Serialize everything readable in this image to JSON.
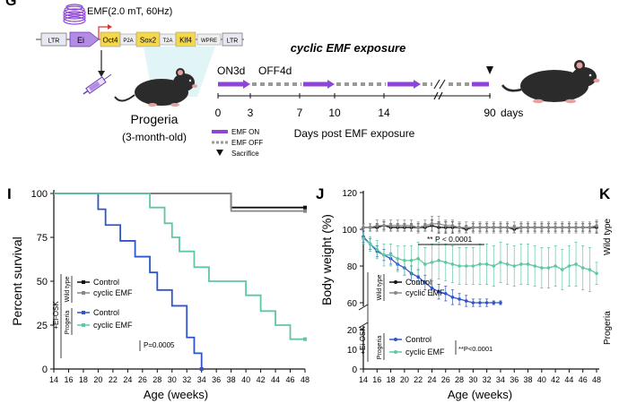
{
  "header": {
    "panel_letter": "G",
    "emf_spec": "EMF(2.0 mT, 60Hz)",
    "construct_parts": [
      "LTR",
      "Ei",
      "Oct4",
      "P2A",
      "Sox2",
      "T2A",
      "Klf4",
      "WPRE",
      "LTR"
    ],
    "mouse_label": "Progeria",
    "mouse_sub": "(3-month-old)",
    "schedule_title": "cyclic EMF exposure",
    "on_label": "ON3d",
    "off_label": "OFF4d",
    "timeline_ticks": [
      "0",
      "3",
      "7",
      "10",
      "14",
      "90"
    ],
    "timeline_unit": "days",
    "timeline_xlabel": "Days post EMF exposure",
    "legend": {
      "on": "EMF ON",
      "off": "EMF OFF",
      "sacrifice": "Sacrifice"
    },
    "colors": {
      "emf_on": "#8e44d8",
      "emf_off": "#9a9a9a",
      "mouse": "#2b2b2b"
    }
  },
  "panel_I": {
    "letter": "I"
  },
  "panel_J": {
    "letter": "J"
  },
  "panel_K": {
    "letter": "K",
    "side_label_1": "Wild type",
    "side_label_2": "Progeria"
  },
  "chart_data": [
    {
      "type": "line",
      "style": "step",
      "xlabel": "Age (weeks)",
      "ylabel": "Percent survival",
      "xlim": [
        14,
        48
      ],
      "ylim": [
        0,
        100
      ],
      "x_ticks": [
        "14",
        "16",
        "18",
        "20",
        "22",
        "24",
        "26",
        "28",
        "30",
        "32",
        "34",
        "36",
        "38",
        "40",
        "42",
        "44",
        "46",
        "48"
      ],
      "y_ticks": [
        "0",
        "25",
        "50",
        "75",
        "100"
      ],
      "legend_groups": [
        {
          "group": "Wild type",
          "outer": "+Ei-OSK",
          "entries": [
            "Control",
            "cyclic EMF"
          ]
        },
        {
          "group": "Progeria",
          "outer": "+Ei-OSK",
          "entries": [
            "Control",
            "cyclic EMF"
          ]
        }
      ],
      "annotation": "P=0.0005",
      "series": [
        {
          "name": "Control",
          "group": "Wild type",
          "color": "#111111",
          "x": [
            14,
            38,
            48
          ],
          "y": [
            100,
            92,
            92
          ]
        },
        {
          "name": "cyclic EMF",
          "group": "Wild type",
          "color": "#888888",
          "x": [
            14,
            38,
            48
          ],
          "y": [
            100,
            90,
            90
          ]
        },
        {
          "name": "Control",
          "group": "Progeria",
          "color": "#2f55c7",
          "x": [
            14,
            19,
            20,
            21,
            23,
            25,
            27,
            28,
            30,
            32,
            33,
            34
          ],
          "y": [
            100,
            100,
            91,
            82,
            73,
            64,
            55,
            45,
            36,
            18,
            9,
            0
          ]
        },
        {
          "name": "cyclic EMF",
          "group": "Progeria",
          "color": "#5ec8a0",
          "x": [
            14,
            25,
            27,
            29,
            30,
            31,
            33,
            35,
            40,
            42,
            44,
            46,
            48
          ],
          "y": [
            100,
            100,
            92,
            83,
            75,
            67,
            58,
            50,
            42,
            33,
            25,
            17,
            17
          ]
        }
      ]
    },
    {
      "type": "line",
      "xlabel": "Age (weeks)",
      "ylabel": "Body weight (%)",
      "xlim": [
        14,
        48
      ],
      "ylim": [
        0,
        120
      ],
      "y_break": [
        20,
        60
      ],
      "x_ticks": [
        "14",
        "16",
        "18",
        "20",
        "22",
        "24",
        "26",
        "28",
        "30",
        "32",
        "34",
        "36",
        "38",
        "40",
        "42",
        "44",
        "46",
        "48"
      ],
      "y_ticks_upper": [
        "60",
        "80",
        "100",
        "120"
      ],
      "y_ticks_lower": [
        "0",
        "10",
        "20"
      ],
      "legend_groups": [
        {
          "group": "Wild type",
          "outer": "+Ei-OSK",
          "entries": [
            "Control",
            "cyclic EMF"
          ]
        },
        {
          "group": "Progeria",
          "outer": "+Ei-OSK",
          "entries": [
            "Control",
            "cyclic EMF"
          ]
        }
      ],
      "annotation_top": "** P < 0.0001",
      "annotation_bottom": "**P<0.0001",
      "series": [
        {
          "name": "Control",
          "group": "Wild type",
          "color": "#111111",
          "x": [
            14,
            15,
            16,
            17,
            18,
            19,
            20,
            21,
            22,
            23,
            24,
            25,
            26,
            27,
            28,
            29,
            30,
            31,
            32,
            33,
            34,
            35,
            36,
            37,
            38,
            39,
            40,
            41,
            42,
            43,
            44,
            45,
            46,
            47,
            48
          ],
          "y": [
            101,
            101,
            101,
            102,
            101,
            101,
            101,
            101,
            101,
            101,
            102,
            101,
            101,
            101,
            101,
            100,
            101,
            101,
            101,
            101,
            101,
            101,
            100,
            101,
            101,
            101,
            101,
            101,
            101,
            101,
            101,
            101,
            101,
            101,
            101
          ],
          "err": [
            2,
            2,
            2,
            2,
            2,
            2,
            2,
            2,
            2,
            2,
            3,
            3,
            3,
            3,
            2,
            2,
            2,
            2,
            2,
            2,
            2,
            2,
            2,
            2,
            2,
            2,
            2,
            2,
            2,
            2,
            2,
            2,
            2,
            2,
            3
          ]
        },
        {
          "name": "cyclic EMF",
          "group": "Wild type",
          "color": "#888888",
          "x": [
            14,
            15,
            16,
            17,
            18,
            19,
            20,
            21,
            22,
            23,
            24,
            25,
            26,
            27,
            28,
            29,
            30,
            31,
            32,
            33,
            34,
            35,
            36,
            37,
            38,
            39,
            40,
            41,
            42,
            43,
            44,
            45,
            46,
            47,
            48
          ],
          "y": [
            101,
            101,
            102,
            102,
            102,
            102,
            102,
            102,
            101,
            102,
            103,
            103,
            102,
            102,
            101,
            101,
            101,
            101,
            101,
            101,
            101,
            101,
            101,
            101,
            101,
            101,
            101,
            101,
            101,
            101,
            101,
            101,
            101,
            101,
            102
          ],
          "err": [
            2,
            2,
            3,
            3,
            3,
            3,
            3,
            3,
            3,
            3,
            4,
            4,
            3,
            3,
            3,
            3,
            3,
            3,
            3,
            3,
            3,
            3,
            3,
            3,
            3,
            3,
            3,
            3,
            3,
            3,
            3,
            3,
            3,
            3,
            3
          ]
        },
        {
          "name": "Control",
          "group": "Progeria",
          "color": "#2f55c7",
          "x": [
            14,
            15,
            16,
            17,
            18,
            19,
            20,
            21,
            22,
            23,
            24,
            25,
            26,
            27,
            28,
            29,
            30,
            31,
            32,
            33,
            34
          ],
          "y": [
            96,
            92,
            88,
            86,
            84,
            81,
            79,
            76,
            74,
            71,
            68,
            66,
            65,
            63,
            62,
            61,
            60,
            60,
            60,
            60,
            60
          ],
          "err": [
            3,
            3,
            3,
            3,
            3,
            3,
            4,
            4,
            4,
            4,
            4,
            4,
            4,
            4,
            3,
            3,
            2,
            2,
            2,
            1,
            1
          ]
        },
        {
          "name": "cyclic EMF",
          "group": "Progeria",
          "color": "#5ec8a0",
          "x": [
            14,
            15,
            16,
            17,
            18,
            19,
            20,
            21,
            22,
            23,
            24,
            25,
            26,
            27,
            28,
            29,
            30,
            31,
            32,
            33,
            34,
            35,
            36,
            37,
            38,
            39,
            40,
            41,
            42,
            43,
            44,
            45,
            46,
            47,
            48
          ],
          "y": [
            95,
            92,
            89,
            86,
            86,
            84,
            83,
            83,
            84,
            81,
            82,
            83,
            82,
            81,
            80,
            80,
            80,
            81,
            81,
            80,
            82,
            81,
            80,
            81,
            81,
            80,
            79,
            79,
            80,
            78,
            80,
            81,
            79,
            78,
            76
          ],
          "err": [
            3,
            4,
            5,
            6,
            6,
            7,
            8,
            8,
            9,
            9,
            10,
            10,
            10,
            10,
            10,
            10,
            10,
            11,
            11,
            11,
            11,
            11,
            11,
            11,
            11,
            11,
            11,
            11,
            11,
            11,
            11,
            12,
            12,
            12,
            6
          ]
        }
      ]
    }
  ]
}
